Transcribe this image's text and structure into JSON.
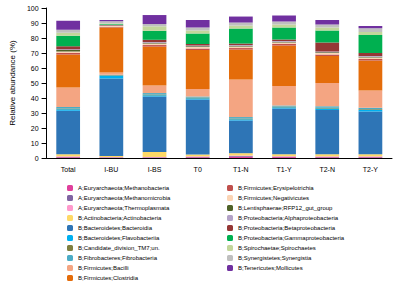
{
  "chart_data": {
    "type": "bar",
    "stacked": true,
    "grid": false,
    "legend": "bottom",
    "y_label": "Relative abundance (%)",
    "categories": [
      "Total",
      "I-BU",
      "I-BS",
      "T0",
      "T1-N",
      "T1-Y",
      "T2-N",
      "T2-Y"
    ],
    "ylim": [
      0,
      100
    ],
    "yticks": [
      0,
      10,
      20,
      30,
      40,
      50,
      60,
      70,
      80,
      90,
      100
    ],
    "series": [
      {
        "name": "A;Euryarchaeota;Methanobacteria",
        "color": "#e0409c",
        "values": [
          0.5,
          0.3,
          0.3,
          0.5,
          0.8,
          0.6,
          0.5,
          0.5
        ]
      },
      {
        "name": "A;Euryarchaeota;Methanomicrobia",
        "color": "#8064a2",
        "values": [
          0.3,
          0.2,
          0.2,
          0.3,
          0.5,
          0.3,
          0.3,
          0.3
        ]
      },
      {
        "name": "A;Euryarchaeota;Thermoplasmata",
        "color": "#ff99cc",
        "values": [
          0.3,
          0.1,
          0.2,
          0.3,
          0.4,
          0.3,
          0.3,
          0.3
        ]
      },
      {
        "name": "B;Actinobacteria;Actinobacteria",
        "color": "#ffd966",
        "values": [
          1.4,
          0.8,
          3.3,
          1.2,
          1.5,
          1.3,
          1.4,
          1.4
        ]
      },
      {
        "name": "B;Bacteroidetes;Bacteroidia",
        "color": "#2e75b6",
        "values": [
          29,
          51.6,
          37,
          36.7,
          21.8,
          30.5,
          29.5,
          28.5
        ]
      },
      {
        "name": "B;Bacteroidetes;Flavobacteriia",
        "color": "#00b0f0",
        "values": [
          1,
          2,
          0.8,
          0.8,
          0.8,
          0.8,
          1,
          1
        ]
      },
      {
        "name": "B;Candidate_division_TM7;un.",
        "color": "#7f7f3f",
        "values": [
          0.5,
          0.3,
          0.5,
          0.5,
          0.5,
          0.5,
          0.5,
          0.5
        ]
      },
      {
        "name": "B;Fibrobacteres;Fibrobacteria",
        "color": "#4bacc6",
        "values": [
          1,
          0.2,
          1,
          0.7,
          1,
          0.7,
          1,
          1
        ]
      },
      {
        "name": "B;Firmicutes;Bacilli",
        "color": "#f4a582",
        "values": [
          13,
          1.5,
          5,
          5,
          25,
          13,
          15.5,
          11.5
        ]
      },
      {
        "name": "B;Firmicutes;Clostridia",
        "color": "#e46c0a",
        "values": [
          22,
          30,
          26,
          26,
          20,
          27,
          18,
          20
        ]
      },
      {
        "name": "B;Firmicutes;Erysipelotrichia",
        "color": "#c0504d",
        "values": [
          1,
          0.5,
          1,
          1,
          1,
          1,
          1,
          1
        ]
      },
      {
        "name": "B;Firmicutes;Negativicutes",
        "color": "#fbd4b4",
        "values": [
          1,
          0.5,
          1,
          1,
          1,
          1,
          1,
          1
        ]
      },
      {
        "name": "B;Lentisphaerae;RFP12_gut_group",
        "color": "#4f6228",
        "values": [
          1,
          0.2,
          0.5,
          0.5,
          0.5,
          0.5,
          0.5,
          0.5
        ]
      },
      {
        "name": "B;Proteobacteria;Alphaproteobacteria",
        "color": "#b3a2c7",
        "values": [
          0.5,
          0.2,
          0.5,
          0.5,
          0.5,
          0.5,
          0.5,
          0.5
        ]
      },
      {
        "name": "B;Proteobacteria;Betaproteobacteria",
        "color": "#953735",
        "values": [
          2,
          0.3,
          1.5,
          1,
          1,
          1,
          6,
          2
        ]
      },
      {
        "name": "B;Proteobacteria;Gammaproteobacteria",
        "color": "#00b050",
        "values": [
          7,
          0.5,
          6,
          7,
          10,
          8,
          8,
          12
        ]
      },
      {
        "name": "B;Spirochaetae;Spirochaetes",
        "color": "#c3d69b",
        "values": [
          2,
          0.5,
          3,
          2,
          2,
          2,
          2,
          2
        ]
      },
      {
        "name": "B;Synergistetes;Synergistia",
        "color": "#bfbfbf",
        "values": [
          2,
          1.5,
          1.5,
          2,
          2,
          2,
          2,
          2.5
        ]
      },
      {
        "name": "B;Tenericutes;Mollicutes",
        "color": "#7030a0",
        "values": [
          6,
          0.8,
          6,
          5,
          4,
          4,
          3,
          1.5
        ]
      }
    ]
  }
}
